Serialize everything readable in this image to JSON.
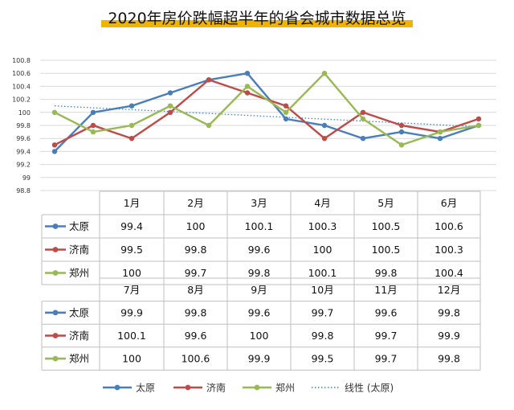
{
  "chart_data": {
    "type": "line",
    "title": "2020年房价跌幅超半年的省会城市数据总览",
    "ylim": [
      98.8,
      100.8
    ],
    "yticks": [
      "100.8",
      "100.6",
      "100.4",
      "100.2",
      "100",
      "99.8",
      "99.6",
      "99.4",
      "99.2",
      "99",
      "98.8"
    ],
    "categories": [
      "1月",
      "2月",
      "3月",
      "4月",
      "5月",
      "6月",
      "7月",
      "8月",
      "9月",
      "10月",
      "11月",
      "12月"
    ],
    "series": [
      {
        "name": "太原",
        "color": "#4a7ebb",
        "values": [
          99.4,
          100,
          100.1,
          100.3,
          100.5,
          100.6,
          99.9,
          99.8,
          99.6,
          99.7,
          99.6,
          99.8
        ],
        "labels": [
          "99.4",
          "100",
          "100.1",
          "100.3",
          "100.5",
          "100.6",
          "99.9",
          "99.8",
          "99.6",
          "99.7",
          "99.6",
          "99.8"
        ]
      },
      {
        "name": "济南",
        "color": "#be4b48",
        "values": [
          99.5,
          99.8,
          99.6,
          100,
          100.5,
          100.3,
          100.1,
          99.6,
          100,
          99.8,
          99.7,
          99.9
        ],
        "labels": [
          "99.5",
          "99.8",
          "99.6",
          "100",
          "100.5",
          "100.3",
          "100.1",
          "99.6",
          "100",
          "99.8",
          "99.7",
          "99.9"
        ]
      },
      {
        "name": "郑州",
        "color": "#98b954",
        "values": [
          100,
          99.7,
          99.8,
          100.1,
          99.8,
          100.4,
          100,
          100.6,
          99.9,
          99.5,
          99.7,
          99.8
        ],
        "labels": [
          "100",
          "99.7",
          "99.8",
          "100.1",
          "99.8",
          "100.4",
          "100",
          "100.6",
          "99.9",
          "99.5",
          "99.7",
          "99.8"
        ]
      }
    ],
    "trendline": {
      "name": "线性 (太原)",
      "color": "#4a7ebb",
      "from": 100.1,
      "to": 99.78
    },
    "legend": [
      "太原",
      "济南",
      "郑州",
      "线性 (太原)"
    ]
  }
}
